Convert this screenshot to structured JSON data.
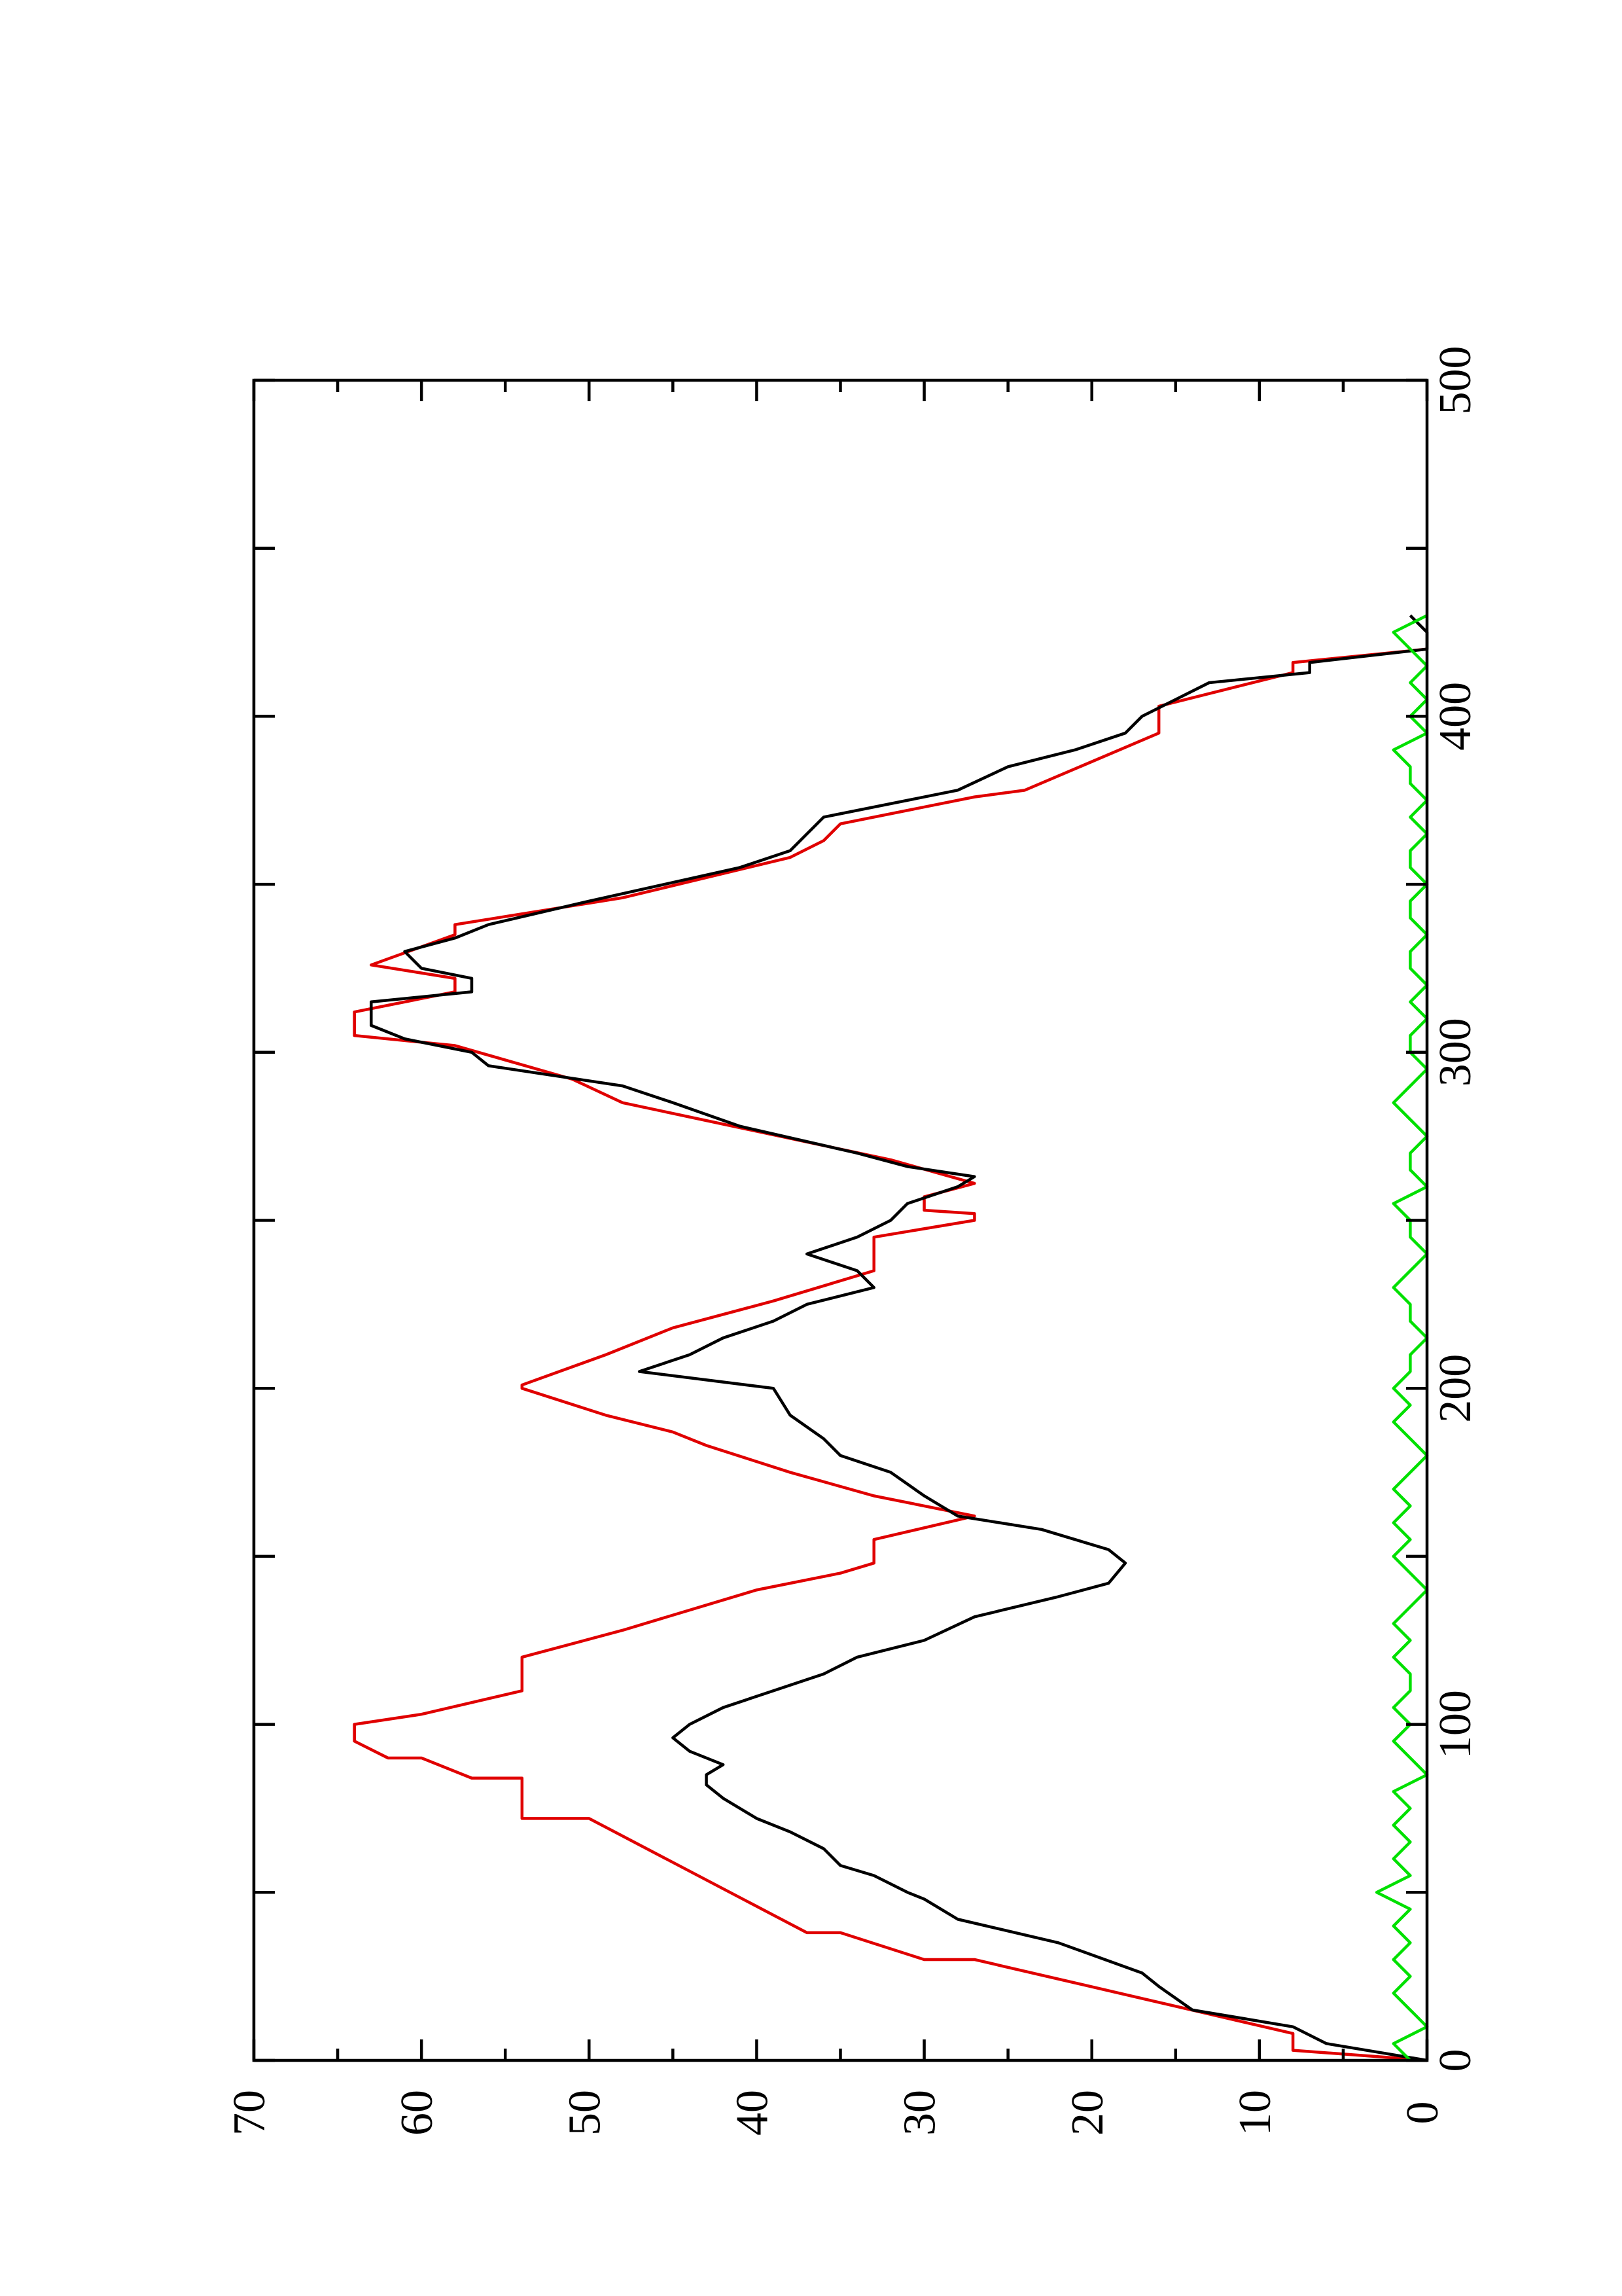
{
  "chart_data": {
    "type": "line",
    "xlim": [
      0,
      500
    ],
    "xticks": [
      0,
      100,
      200,
      300,
      400,
      500
    ],
    "xminor_ticks": [
      50,
      150,
      250,
      350,
      450
    ],
    "ylim": [
      0,
      70
    ],
    "yticks": [
      0,
      10,
      20,
      30,
      40,
      50,
      60,
      70
    ],
    "yminor_ticks": [
      5,
      15,
      25,
      35,
      45,
      55,
      65
    ],
    "series": [
      {
        "color": "#e00000",
        "x": [
          0,
          3,
          8,
          30,
          30,
          38,
          38,
          72,
          72,
          84,
          84,
          90,
          90,
          95,
          100,
          103,
          103,
          110,
          120,
          128,
          140,
          145,
          148,
          155,
          162,
          168,
          175,
          183,
          187,
          192,
          200,
          201,
          210,
          218,
          226,
          235,
          245,
          250,
          252,
          253,
          257,
          261,
          268,
          285,
          292,
          302,
          305,
          312,
          318,
          322,
          326,
          335,
          338,
          346,
          358,
          363,
          368,
          376,
          378,
          395,
          403,
          413,
          416,
          420
        ],
        "values": [
          0,
          8,
          8,
          27,
          30,
          35,
          37,
          50,
          54,
          54,
          57,
          60,
          62,
          64,
          64,
          60,
          60,
          54,
          54,
          48,
          40,
          35,
          33,
          33,
          27,
          33,
          38,
          43,
          45,
          49,
          54,
          54,
          49,
          45,
          39,
          33,
          33,
          27,
          27,
          30,
          30,
          27,
          32,
          48,
          51,
          58,
          64,
          64,
          58,
          58,
          63,
          58,
          58,
          48,
          38,
          36,
          35,
          27,
          24,
          16,
          16,
          8,
          8,
          0
        ]
      },
      {
        "color": "#000000",
        "x": [
          0,
          5,
          10,
          15,
          22,
          26,
          35,
          42,
          48,
          50,
          55,
          58,
          63,
          68,
          72,
          78,
          82,
          85,
          88,
          92,
          96,
          100,
          105,
          110,
          115,
          120,
          125,
          132,
          138,
          142,
          148,
          152,
          158,
          162,
          168,
          175,
          180,
          185,
          192,
          200,
          205,
          210,
          215,
          220,
          225,
          230,
          235,
          240,
          245,
          250,
          255,
          260,
          263,
          266,
          270,
          278,
          285,
          290,
          296,
          300,
          304,
          308,
          315,
          318,
          322,
          325,
          330,
          334,
          338,
          345,
          355,
          360,
          365,
          370,
          378,
          385,
          390,
          395,
          400,
          405,
          410,
          413,
          416,
          420,
          425,
          430
        ],
        "values": [
          0,
          6,
          8,
          14,
          16,
          17,
          22,
          28,
          30,
          31,
          33,
          35,
          36,
          38,
          40,
          42,
          43,
          43,
          42,
          44,
          45,
          44,
          42,
          39,
          36,
          34,
          30,
          27,
          22,
          19,
          18,
          19,
          23,
          28,
          30,
          32,
          35,
          36,
          38,
          39,
          47,
          44,
          42,
          39,
          37,
          33,
          34,
          37,
          34,
          32,
          31,
          28,
          27,
          31,
          34,
          41,
          45,
          48,
          56,
          57,
          61,
          63,
          63,
          57,
          57,
          60,
          61,
          58,
          56,
          50,
          41,
          38,
          37,
          36,
          28,
          25,
          21,
          18,
          17,
          15,
          13,
          7,
          7,
          0,
          0,
          1
        ]
      },
      {
        "color": "#00e000",
        "x": [
          0,
          5,
          10,
          15,
          20,
          25,
          30,
          35,
          40,
          45,
          50,
          55,
          60,
          65,
          70,
          75,
          80,
          85,
          90,
          95,
          100,
          105,
          110,
          115,
          120,
          125,
          130,
          135,
          140,
          145,
          150,
          155,
          160,
          165,
          170,
          175,
          180,
          185,
          190,
          195,
          200,
          205,
          210,
          215,
          220,
          225,
          230,
          235,
          240,
          245,
          250,
          255,
          260,
          265,
          270,
          275,
          280,
          285,
          290,
          295,
          300,
          305,
          310,
          315,
          320,
          325,
          330,
          335,
          340,
          345,
          350,
          355,
          360,
          365,
          370,
          375,
          380,
          385,
          390,
          395,
          400,
          405,
          410,
          415,
          420,
          425,
          430
        ],
        "values": [
          1,
          2,
          0,
          1,
          2,
          1,
          2,
          1,
          2,
          1,
          3,
          1,
          2,
          1,
          2,
          1,
          2,
          0,
          1,
          2,
          1,
          2,
          1,
          1,
          2,
          1,
          2,
          1,
          0,
          1,
          2,
          1,
          2,
          1,
          2,
          1,
          0,
          1,
          2,
          1,
          2,
          1,
          1,
          0,
          1,
          1,
          2,
          1,
          0,
          1,
          1,
          2,
          0,
          1,
          1,
          0,
          1,
          2,
          1,
          0,
          1,
          1,
          0,
          1,
          0,
          1,
          1,
          0,
          1,
          1,
          0,
          1,
          1,
          0,
          1,
          0,
          1,
          1,
          2,
          0,
          1,
          0,
          1,
          0,
          1,
          2,
          0
        ]
      }
    ]
  }
}
